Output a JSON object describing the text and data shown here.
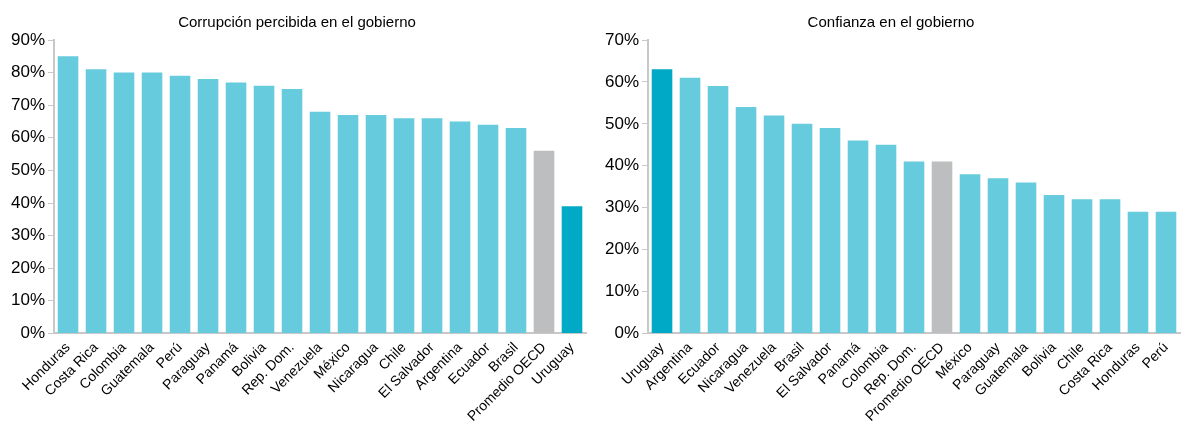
{
  "chart_data": [
    {
      "type": "bar",
      "title": "Corrupción percibida en el gobierno",
      "categories": [
        "Honduras",
        "Costa Rica",
        "Colombia",
        "Guatemala",
        "Perú",
        "Paraguay",
        "Panamá",
        "Bolivia",
        "Rep. Dom.",
        "Venezuela",
        "México",
        "Nicaragua",
        "Chile",
        "El Salvador",
        "Argentina",
        "Ecuador",
        "Brasil",
        "Promedio OECD",
        "Uruguay"
      ],
      "values": [
        85,
        81,
        80,
        80,
        79,
        78,
        77,
        76,
        75,
        68,
        67,
        67,
        66,
        66,
        65,
        64,
        63,
        56,
        39
      ],
      "colors": [
        "#66cbdc",
        "#66cbdc",
        "#66cbdc",
        "#66cbdc",
        "#66cbdc",
        "#66cbdc",
        "#66cbdc",
        "#66cbdc",
        "#66cbdc",
        "#66cbdc",
        "#66cbdc",
        "#66cbdc",
        "#66cbdc",
        "#66cbdc",
        "#66cbdc",
        "#66cbdc",
        "#66cbdc",
        "#bdbec0",
        "#00a9c6"
      ],
      "ylim": [
        0,
        90
      ],
      "yticks": [
        {
          "value": 0,
          "label": "0%"
        },
        {
          "value": 10,
          "label": "10%"
        },
        {
          "value": 20,
          "label": "20%"
        },
        {
          "value": 30,
          "label": "30%"
        },
        {
          "value": 40,
          "label": "40%"
        },
        {
          "value": 50,
          "label": "50%"
        },
        {
          "value": 60,
          "label": "60%"
        },
        {
          "value": 70,
          "label": "70%"
        },
        {
          "value": 80,
          "label": "80%"
        },
        {
          "value": 90,
          "label": "90%"
        }
      ],
      "grid": false,
      "legend": false
    },
    {
      "type": "bar",
      "title": "Confianza en el gobierno",
      "categories": [
        "Uruguay",
        "Argentina",
        "Ecuador",
        "Nicaragua",
        "Venezuela",
        "Brasil",
        "El Salvador",
        "Panamá",
        "Colombia",
        "Rep. Dom.",
        "Promedio OECD",
        "México",
        "Paraguay",
        "Guatemala",
        "Bolivia",
        "Chile",
        "Costa Rica",
        "Honduras",
        "Perú"
      ],
      "values": [
        63,
        61,
        59,
        54,
        52,
        50,
        49,
        46,
        45,
        41,
        41,
        38,
        37,
        36,
        33,
        32,
        32,
        29,
        29
      ],
      "colors": [
        "#00a9c6",
        "#66cbdc",
        "#66cbdc",
        "#66cbdc",
        "#66cbdc",
        "#66cbdc",
        "#66cbdc",
        "#66cbdc",
        "#66cbdc",
        "#66cbdc",
        "#bdbec0",
        "#66cbdc",
        "#66cbdc",
        "#66cbdc",
        "#66cbdc",
        "#66cbdc",
        "#66cbdc",
        "#66cbdc",
        "#66cbdc"
      ],
      "ylim": [
        0,
        70
      ],
      "yticks": [
        {
          "value": 0,
          "label": "0%"
        },
        {
          "value": 10,
          "label": "10%"
        },
        {
          "value": 20,
          "label": "20%"
        },
        {
          "value": 30,
          "label": "30%"
        },
        {
          "value": 40,
          "label": "40%"
        },
        {
          "value": 50,
          "label": "50%"
        },
        {
          "value": 60,
          "label": "60%"
        },
        {
          "value": 70,
          "label": "70%"
        }
      ],
      "grid": false,
      "legend": false
    }
  ]
}
